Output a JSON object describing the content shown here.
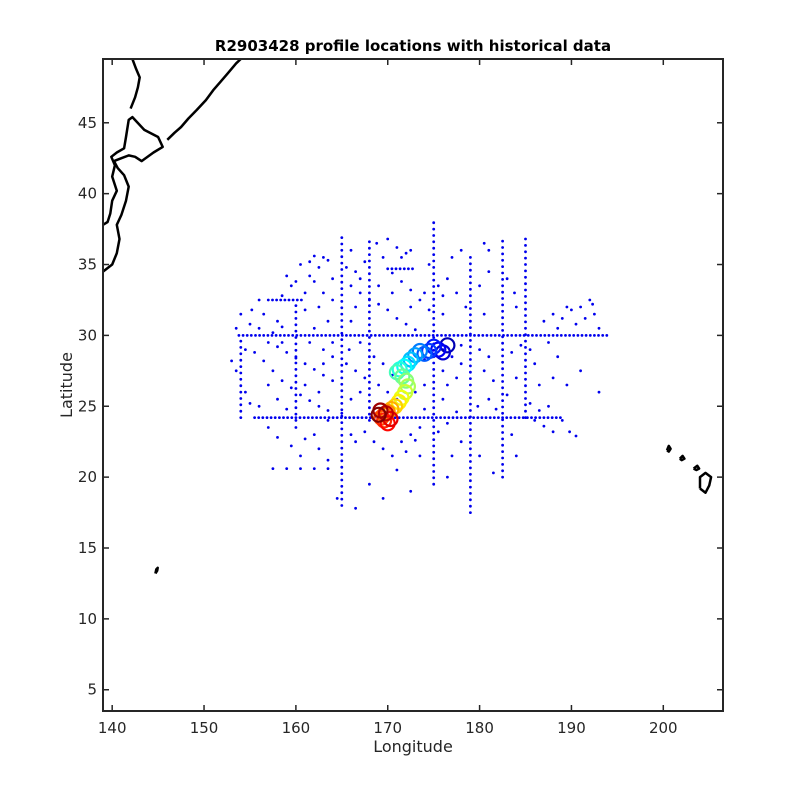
{
  "chart_data": {
    "type": "scatter",
    "title": "R2903428 profile locations with historical data",
    "xlabel": "Longitude",
    "ylabel": "Latitude",
    "xlim": [
      139,
      206.5
    ],
    "ylim": [
      3.5,
      49.5
    ],
    "xticks": [
      140,
      150,
      160,
      170,
      180,
      190,
      200
    ],
    "yticks": [
      5,
      10,
      15,
      20,
      25,
      30,
      35,
      40,
      45
    ],
    "grid": false,
    "legend": "none",
    "colors": {
      "historical": "#0000ee",
      "coastline": "#000000",
      "axes": "#262626"
    },
    "historical_lines": [
      {
        "orientation": "horizontal",
        "value": 30.0,
        "from": 153.8,
        "to": 194.0
      },
      {
        "orientation": "horizontal",
        "value": 24.2,
        "from": 155.5,
        "to": 189.0
      },
      {
        "orientation": "horizontal",
        "value": 32.5,
        "from": 157.0,
        "to": 161.0
      },
      {
        "orientation": "horizontal",
        "value": 34.7,
        "from": 170.0,
        "to": 173.0
      },
      {
        "orientation": "vertical",
        "value": 165.0,
        "from": 18.0,
        "to": 37.0
      },
      {
        "orientation": "vertical",
        "value": 179.0,
        "from": 17.5,
        "to": 35.5
      },
      {
        "orientation": "vertical",
        "value": 182.5,
        "from": 20.0,
        "to": 37.0
      },
      {
        "orientation": "vertical",
        "value": 175.0,
        "from": 19.5,
        "to": 38.0
      },
      {
        "orientation": "vertical",
        "value": 160.0,
        "from": 24.0,
        "to": 32.5
      },
      {
        "orientation": "vertical",
        "value": 154.0,
        "from": 24.2,
        "to": 30.0
      },
      {
        "orientation": "vertical",
        "value": 168.0,
        "from": 24.0,
        "to": 37.0
      },
      {
        "orientation": "vertical",
        "value": 185.0,
        "from": 24.2,
        "to": 37.0
      }
    ],
    "historical_points": [
      [
        160.5,
        35.0
      ],
      [
        161.5,
        35.2
      ],
      [
        162.5,
        34.8
      ],
      [
        163.5,
        35.3
      ],
      [
        162.0,
        33.8
      ],
      [
        161.0,
        33.0
      ],
      [
        159.5,
        33.5
      ],
      [
        158.5,
        32.8
      ],
      [
        156.0,
        32.5
      ],
      [
        155.2,
        31.8
      ],
      [
        156.5,
        31.5
      ],
      [
        158.0,
        31.0
      ],
      [
        155.5,
        28.8
      ],
      [
        156.5,
        28.2
      ],
      [
        157.5,
        27.5
      ],
      [
        158.5,
        26.8
      ],
      [
        159.5,
        26.3
      ],
      [
        160.5,
        25.8
      ],
      [
        161.5,
        25.4
      ],
      [
        162.5,
        25.0
      ],
      [
        163.5,
        24.7
      ],
      [
        157.0,
        29.5
      ],
      [
        158.0,
        29.2
      ],
      [
        159.0,
        28.8
      ],
      [
        160.0,
        28.4
      ],
      [
        161.0,
        28.0
      ],
      [
        162.0,
        27.6
      ],
      [
        163.0,
        27.2
      ],
      [
        164.0,
        26.8
      ],
      [
        153.5,
        27.5
      ],
      [
        153.0,
        28.2
      ],
      [
        154.5,
        26.0
      ],
      [
        155.0,
        25.2
      ],
      [
        157.0,
        23.5
      ],
      [
        158.0,
        22.8
      ],
      [
        159.5,
        22.2
      ],
      [
        160.5,
        21.5
      ],
      [
        161.0,
        22.7
      ],
      [
        162.5,
        22.0
      ],
      [
        163.5,
        21.2
      ],
      [
        157.5,
        20.6
      ],
      [
        159.0,
        20.6
      ],
      [
        160.5,
        20.6
      ],
      [
        162.0,
        20.6
      ],
      [
        163.5,
        20.6
      ],
      [
        164.5,
        18.5
      ],
      [
        166.5,
        17.8
      ],
      [
        168.0,
        19.5
      ],
      [
        169.5,
        18.5
      ],
      [
        171.0,
        20.5
      ],
      [
        172.5,
        19.0
      ],
      [
        173.5,
        21.5
      ],
      [
        172.0,
        21.8
      ],
      [
        173.0,
        22.6
      ],
      [
        176.5,
        20.0
      ],
      [
        177.0,
        21.5
      ],
      [
        178.0,
        22.5
      ],
      [
        180.0,
        21.5
      ],
      [
        181.5,
        20.3
      ],
      [
        183.5,
        23.0
      ],
      [
        184.0,
        21.5
      ],
      [
        186.0,
        24.0
      ],
      [
        187.0,
        23.6
      ],
      [
        188.0,
        23.2
      ],
      [
        189.0,
        24.0
      ],
      [
        189.8,
        23.2
      ],
      [
        190.5,
        22.9
      ],
      [
        188.0,
        27.0
      ],
      [
        189.5,
        26.5
      ],
      [
        191.0,
        27.5
      ],
      [
        193.0,
        26.0
      ],
      [
        187.0,
        31.0
      ],
      [
        188.0,
        31.5
      ],
      [
        189.0,
        31.2
      ],
      [
        190.0,
        31.8
      ],
      [
        191.0,
        32.0
      ],
      [
        192.0,
        32.5
      ],
      [
        192.5,
        31.5
      ],
      [
        193.0,
        30.5
      ],
      [
        190.5,
        30.8
      ],
      [
        191.5,
        31.2
      ],
      [
        192.3,
        32.2
      ],
      [
        189.5,
        32.0
      ],
      [
        188.5,
        30.5
      ],
      [
        187.5,
        29.5
      ],
      [
        188.5,
        28.5
      ],
      [
        186.0,
        28.0
      ],
      [
        185.5,
        29.0
      ],
      [
        184.0,
        32.0
      ],
      [
        183.8,
        33.0
      ],
      [
        183.0,
        34.0
      ],
      [
        181.0,
        36.0
      ],
      [
        180.5,
        36.5
      ],
      [
        178.0,
        36.0
      ],
      [
        177.0,
        35.5
      ],
      [
        176.5,
        34.0
      ],
      [
        177.5,
        33.0
      ],
      [
        178.5,
        32.0
      ],
      [
        180.0,
        33.5
      ],
      [
        181.0,
        34.5
      ],
      [
        180.5,
        31.5
      ],
      [
        176.0,
        31.5
      ],
      [
        174.5,
        31.8
      ],
      [
        173.5,
        32.5
      ],
      [
        172.5,
        33.2
      ],
      [
        171.5,
        33.8
      ],
      [
        170.5,
        34.4
      ],
      [
        169.5,
        35.5
      ],
      [
        168.8,
        36.5
      ],
      [
        170.0,
        36.8
      ],
      [
        171.0,
        36.2
      ],
      [
        172.0,
        35.8
      ],
      [
        167.5,
        35.2
      ],
      [
        166.5,
        34.5
      ],
      [
        166.0,
        33.5
      ],
      [
        167.0,
        33.0
      ],
      [
        168.0,
        32.5
      ],
      [
        169.0,
        32.2
      ],
      [
        170.0,
        31.8
      ],
      [
        171.0,
        31.2
      ],
      [
        172.0,
        30.8
      ],
      [
        173.0,
        30.4
      ],
      [
        166.0,
        31.0
      ],
      [
        166.5,
        32.0
      ],
      [
        164.0,
        32.5
      ],
      [
        163.5,
        31.0
      ],
      [
        162.0,
        30.5
      ],
      [
        161.5,
        29.5
      ],
      [
        163.0,
        29.0
      ],
      [
        164.0,
        28.5
      ],
      [
        165.5,
        28.0
      ],
      [
        166.5,
        27.5
      ],
      [
        167.5,
        27.0
      ],
      [
        169.0,
        26.5
      ],
      [
        170.0,
        26.0
      ],
      [
        171.0,
        25.5
      ],
      [
        166.0,
        23.0
      ],
      [
        166.5,
        22.5
      ],
      [
        167.5,
        23.2
      ],
      [
        168.5,
        22.5
      ],
      [
        169.5,
        22.0
      ],
      [
        170.5,
        21.5
      ],
      [
        171.5,
        22.5
      ],
      [
        172.5,
        23.0
      ],
      [
        173.5,
        23.5
      ],
      [
        176.0,
        25.5
      ],
      [
        176.5,
        26.5
      ],
      [
        177.5,
        27.0
      ],
      [
        178.0,
        28.0
      ],
      [
        177.0,
        28.5
      ],
      [
        176.0,
        27.5
      ],
      [
        174.0,
        26.5
      ],
      [
        173.0,
        26.0
      ],
      [
        181.0,
        25.5
      ],
      [
        181.5,
        26.8
      ],
      [
        180.5,
        27.5
      ],
      [
        181.0,
        28.5
      ],
      [
        184.0,
        27.0
      ],
      [
        183.5,
        28.8
      ],
      [
        184.5,
        29.3
      ],
      [
        186.5,
        26.5
      ],
      [
        163.0,
        28.0
      ],
      [
        165.0,
        24.5
      ],
      [
        166.0,
        25.5
      ],
      [
        167.0,
        26.0
      ],
      [
        172.5,
        27.8
      ],
      [
        174.0,
        28.3
      ],
      [
        176.0,
        29.0
      ],
      [
        178.0,
        29.3
      ],
      [
        180.0,
        29.0
      ],
      [
        156.0,
        30.5
      ],
      [
        157.5,
        30.2
      ],
      [
        158.5,
        30.6
      ],
      [
        161.0,
        31.8
      ],
      [
        162.5,
        32.0
      ],
      [
        163.0,
        33.0
      ],
      [
        161.5,
        34.2
      ],
      [
        164.0,
        34.0
      ],
      [
        165.5,
        34.8
      ],
      [
        163.0,
        35.5
      ],
      [
        162.0,
        35.6
      ],
      [
        171.5,
        35.5
      ],
      [
        172.5,
        36.0
      ],
      [
        174.5,
        35.0
      ],
      [
        175.5,
        33.5
      ],
      [
        176.0,
        32.8
      ],
      [
        174.0,
        33.0
      ],
      [
        172.5,
        32.0
      ],
      [
        170.5,
        33.0
      ],
      [
        169.0,
        33.5
      ],
      [
        167.0,
        34.0
      ],
      [
        166.0,
        36.0
      ],
      [
        160.0,
        33.8
      ],
      [
        159.0,
        34.2
      ],
      [
        158.5,
        29.5
      ],
      [
        157.0,
        26.5
      ],
      [
        156.0,
        25.0
      ],
      [
        160.0,
        23.5
      ],
      [
        162.0,
        23.0
      ],
      [
        163.5,
        24.0
      ],
      [
        154.5,
        29.0
      ],
      [
        153.5,
        30.5
      ],
      [
        155.0,
        30.8
      ],
      [
        154.0,
        31.5
      ],
      [
        158.0,
        25.5
      ],
      [
        159.0,
        24.8
      ],
      [
        161.0,
        26.5
      ],
      [
        162.5,
        26.0
      ],
      [
        164.0,
        29.5
      ],
      [
        165.8,
        29.0
      ],
      [
        167.0,
        29.5
      ],
      [
        168.5,
        28.5
      ],
      [
        169.5,
        28.0
      ],
      [
        170.5,
        27.2
      ],
      [
        174.0,
        24.8
      ],
      [
        175.5,
        23.2
      ],
      [
        176.5,
        23.8
      ],
      [
        177.5,
        24.6
      ],
      [
        179.8,
        25.0
      ],
      [
        181.8,
        24.8
      ],
      [
        183.0,
        25.8
      ],
      [
        185.5,
        25.2
      ],
      [
        186.5,
        24.7
      ],
      [
        187.5,
        25.0
      ]
    ],
    "float_track": [
      {
        "lon": 176.5,
        "lat": 29.3
      },
      {
        "lon": 176.0,
        "lat": 28.8
      },
      {
        "lon": 175.5,
        "lat": 29.0
      },
      {
        "lon": 175.0,
        "lat": 29.2
      },
      {
        "lon": 174.5,
        "lat": 28.9
      },
      {
        "lon": 174.0,
        "lat": 28.7
      },
      {
        "lon": 173.5,
        "lat": 28.9
      },
      {
        "lon": 173.0,
        "lat": 28.6
      },
      {
        "lon": 172.5,
        "lat": 28.3
      },
      {
        "lon": 172.2,
        "lat": 28.0
      },
      {
        "lon": 171.8,
        "lat": 27.8
      },
      {
        "lon": 171.3,
        "lat": 27.6
      },
      {
        "lon": 171.0,
        "lat": 27.4
      },
      {
        "lon": 171.6,
        "lat": 27.1
      },
      {
        "lon": 172.0,
        "lat": 26.8
      },
      {
        "lon": 172.2,
        "lat": 26.4
      },
      {
        "lon": 171.9,
        "lat": 26.0
      },
      {
        "lon": 171.5,
        "lat": 25.6
      },
      {
        "lon": 171.2,
        "lat": 25.3
      },
      {
        "lon": 170.8,
        "lat": 25.0
      },
      {
        "lon": 170.4,
        "lat": 24.8
      },
      {
        "lon": 170.0,
        "lat": 24.6
      },
      {
        "lon": 169.6,
        "lat": 24.4
      },
      {
        "lon": 169.3,
        "lat": 24.2
      },
      {
        "lon": 169.6,
        "lat": 24.0
      },
      {
        "lon": 170.0,
        "lat": 23.8
      },
      {
        "lon": 170.3,
        "lat": 24.1
      },
      {
        "lon": 169.8,
        "lat": 24.5
      },
      {
        "lon": 169.2,
        "lat": 24.7
      },
      {
        "lon": 169.0,
        "lat": 24.4
      }
    ],
    "coastlines": [
      {
        "name": "japan-east",
        "points": [
          [
            139.0,
            34.5
          ],
          [
            140.0,
            35.0
          ],
          [
            140.5,
            35.8
          ],
          [
            140.8,
            36.8
          ],
          [
            140.5,
            37.8
          ],
          [
            141.0,
            38.5
          ],
          [
            141.5,
            39.5
          ],
          [
            141.8,
            40.5
          ],
          [
            141.3,
            41.3
          ],
          [
            140.6,
            41.8
          ],
          [
            140.2,
            42.3
          ],
          [
            141.0,
            42.5
          ],
          [
            141.8,
            42.7
          ],
          [
            142.5,
            42.6
          ],
          [
            143.2,
            42.3
          ],
          [
            144.5,
            42.9
          ],
          [
            145.5,
            43.3
          ],
          [
            145.0,
            44.0
          ],
          [
            143.5,
            44.5
          ],
          [
            142.2,
            45.4
          ],
          [
            141.8,
            45.2
          ],
          [
            141.5,
            44.0
          ],
          [
            141.3,
            43.2
          ],
          [
            140.5,
            42.9
          ],
          [
            139.9,
            42.6
          ],
          [
            140.3,
            42.0
          ],
          [
            140.0,
            41.2
          ],
          [
            140.5,
            40.2
          ],
          [
            140.0,
            39.5
          ],
          [
            139.8,
            38.6
          ],
          [
            139.5,
            38.0
          ],
          [
            139.0,
            37.8
          ]
        ]
      },
      {
        "name": "sakhalin",
        "points": [
          [
            142.0,
            46.0
          ],
          [
            142.5,
            46.8
          ],
          [
            142.8,
            47.5
          ],
          [
            143.0,
            48.2
          ],
          [
            142.6,
            48.8
          ],
          [
            142.2,
            49.5
          ]
        ]
      },
      {
        "name": "kuril-islands",
        "points": [
          [
            146.0,
            43.8
          ],
          [
            146.8,
            44.3
          ],
          [
            147.5,
            44.7
          ],
          [
            148.3,
            45.3
          ],
          [
            149.2,
            45.9
          ],
          [
            150.2,
            46.6
          ],
          [
            151.0,
            47.3
          ],
          [
            151.8,
            47.9
          ],
          [
            152.6,
            48.5
          ],
          [
            153.5,
            49.2
          ],
          [
            154.0,
            49.5
          ]
        ]
      },
      {
        "name": "hawaii-big-island",
        "points": [
          [
            204.0,
            19.2
          ],
          [
            204.6,
            18.9
          ],
          [
            205.0,
            19.4
          ],
          [
            205.2,
            20.0
          ],
          [
            204.6,
            20.3
          ],
          [
            204.0,
            20.0
          ],
          [
            204.0,
            19.2
          ]
        ]
      },
      {
        "name": "hawaii-maui",
        "points": [
          [
            203.3,
            20.6
          ],
          [
            203.7,
            20.8
          ],
          [
            203.9,
            20.6
          ],
          [
            203.6,
            20.5
          ],
          [
            203.3,
            20.6
          ]
        ]
      },
      {
        "name": "hawaii-oahu",
        "points": [
          [
            201.8,
            21.3
          ],
          [
            202.1,
            21.5
          ],
          [
            202.3,
            21.3
          ],
          [
            202.0,
            21.2
          ],
          [
            201.8,
            21.3
          ]
        ]
      },
      {
        "name": "hawaii-kauai",
        "points": [
          [
            200.4,
            21.9
          ],
          [
            200.6,
            22.2
          ],
          [
            200.8,
            22.0
          ],
          [
            200.6,
            21.8
          ],
          [
            200.4,
            21.9
          ]
        ]
      },
      {
        "name": "guam",
        "points": [
          [
            144.7,
            13.2
          ],
          [
            144.9,
            13.4
          ],
          [
            144.95,
            13.6
          ],
          [
            144.8,
            13.5
          ],
          [
            144.7,
            13.2
          ]
        ]
      }
    ]
  }
}
